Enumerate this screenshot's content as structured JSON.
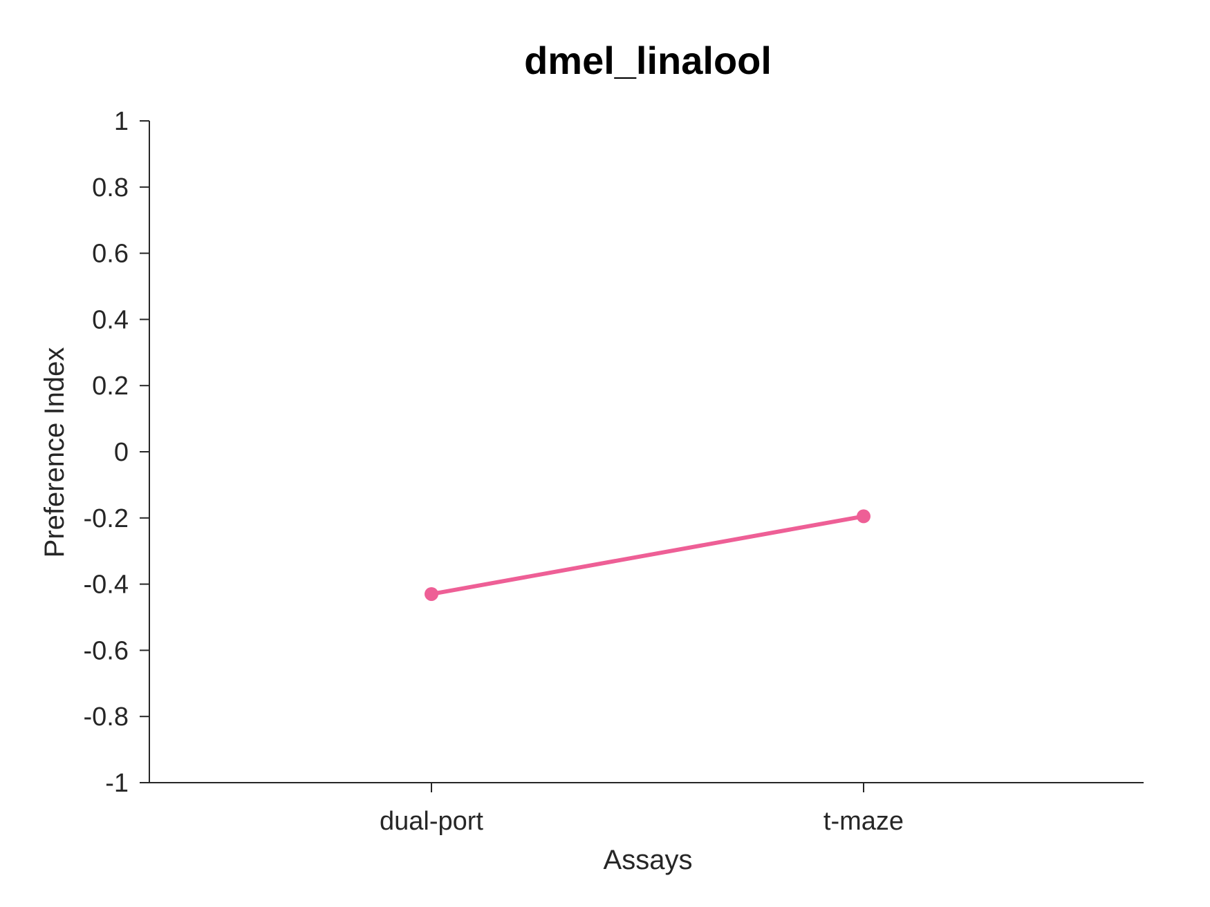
{
  "chart_data": {
    "type": "line",
    "title": "dmel_linalool",
    "xlabel": "Assays",
    "ylabel": "Preference Index",
    "categories": [
      "dual-port",
      "t-maze"
    ],
    "series": [
      {
        "values": [
          -0.43,
          -0.195
        ],
        "color": "#ee5f96"
      }
    ],
    "ylim": [
      -1,
      1
    ],
    "yticks": [
      -1,
      -0.8,
      -0.6,
      -0.4,
      -0.2,
      0,
      0.2,
      0.4,
      0.6,
      0.8,
      1
    ],
    "ytick_labels": [
      "-1",
      "-0.8",
      "-0.6",
      "-0.4",
      "-0.2",
      "0",
      "0.2",
      "0.4",
      "0.6",
      "0.8",
      "1"
    ],
    "grid": false,
    "legend": "none"
  }
}
